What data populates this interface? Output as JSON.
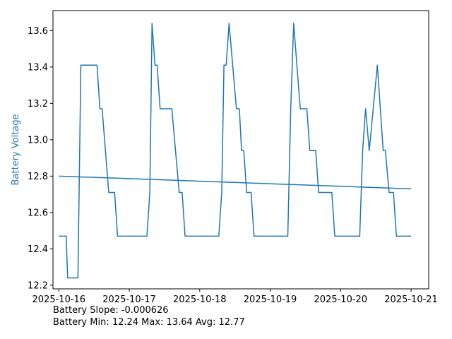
{
  "chart_data": {
    "type": "line",
    "ylabel": "Battery Voltage",
    "ylabel_color": "#1f77b4",
    "line_color": "#1f77b4",
    "ylim": [
      12.18,
      13.71
    ],
    "xlim": [
      "2025-10-15T22:00",
      "2025-10-21T06:00"
    ],
    "x_ticks": [
      "2025-10-16",
      "2025-10-17",
      "2025-10-18",
      "2025-10-19",
      "2025-10-20",
      "2025-10-21"
    ],
    "y_ticks": [
      "12.2",
      "12.4",
      "12.6",
      "12.8",
      "13.0",
      "13.2",
      "13.4",
      "13.6"
    ],
    "grid": false,
    "series": [
      {
        "values": [
          [
            "2025-10-16T00:00",
            12.47
          ],
          [
            "2025-10-16T02:30",
            12.47
          ],
          [
            "2025-10-16T03:00",
            12.24
          ],
          [
            "2025-10-16T06:30",
            12.24
          ],
          [
            "2025-10-16T07:30",
            13.41
          ],
          [
            "2025-10-16T13:00",
            13.41
          ],
          [
            "2025-10-16T14:00",
            13.17
          ],
          [
            "2025-10-16T14:45",
            13.17
          ],
          [
            "2025-10-16T17:00",
            12.71
          ],
          [
            "2025-10-16T19:00",
            12.71
          ],
          [
            "2025-10-16T20:00",
            12.47
          ],
          [
            "2025-10-17T06:00",
            12.47
          ],
          [
            "2025-10-17T07:00",
            12.71
          ],
          [
            "2025-10-17T07:45",
            13.64
          ],
          [
            "2025-10-17T08:45",
            13.41
          ],
          [
            "2025-10-17T09:30",
            13.41
          ],
          [
            "2025-10-17T10:30",
            13.17
          ],
          [
            "2025-10-17T14:30",
            13.17
          ],
          [
            "2025-10-17T17:00",
            12.71
          ],
          [
            "2025-10-17T18:00",
            12.71
          ],
          [
            "2025-10-17T19:00",
            12.47
          ],
          [
            "2025-10-18T06:30",
            12.47
          ],
          [
            "2025-10-18T07:30",
            12.71
          ],
          [
            "2025-10-18T08:15",
            13.41
          ],
          [
            "2025-10-18T09:00",
            13.41
          ],
          [
            "2025-10-18T10:00",
            13.64
          ],
          [
            "2025-10-18T12:30",
            13.17
          ],
          [
            "2025-10-18T13:30",
            13.17
          ],
          [
            "2025-10-18T14:15",
            12.94
          ],
          [
            "2025-10-18T15:00",
            12.94
          ],
          [
            "2025-10-18T16:00",
            12.71
          ],
          [
            "2025-10-18T17:30",
            12.71
          ],
          [
            "2025-10-18T18:30",
            12.47
          ],
          [
            "2025-10-19T06:00",
            12.47
          ],
          [
            "2025-10-19T07:00",
            13.17
          ],
          [
            "2025-10-19T08:00",
            13.64
          ],
          [
            "2025-10-19T10:15",
            13.17
          ],
          [
            "2025-10-19T12:30",
            13.17
          ],
          [
            "2025-10-19T13:30",
            12.94
          ],
          [
            "2025-10-19T15:30",
            12.94
          ],
          [
            "2025-10-19T16:30",
            12.71
          ],
          [
            "2025-10-19T21:00",
            12.71
          ],
          [
            "2025-10-19T22:00",
            12.47
          ],
          [
            "2025-10-20T06:30",
            12.47
          ],
          [
            "2025-10-20T07:30",
            12.94
          ],
          [
            "2025-10-20T08:30",
            13.17
          ],
          [
            "2025-10-20T09:45",
            12.94
          ],
          [
            "2025-10-20T12:30",
            13.41
          ],
          [
            "2025-10-20T14:30",
            12.94
          ],
          [
            "2025-10-20T15:15",
            12.94
          ],
          [
            "2025-10-20T16:30",
            12.71
          ],
          [
            "2025-10-20T18:00",
            12.71
          ],
          [
            "2025-10-20T19:00",
            12.47
          ],
          [
            "2025-10-21T00:00",
            12.47
          ]
        ]
      },
      {
        "values": [
          [
            "2025-10-16T00:00",
            12.8
          ],
          [
            "2025-10-21T00:00",
            12.73
          ]
        ]
      }
    ]
  },
  "footer": {
    "slope_line": "Battery Slope: -0.000626",
    "stats_line": "Battery Min: 12.24 Max: 13.64 Avg: 12.77"
  }
}
